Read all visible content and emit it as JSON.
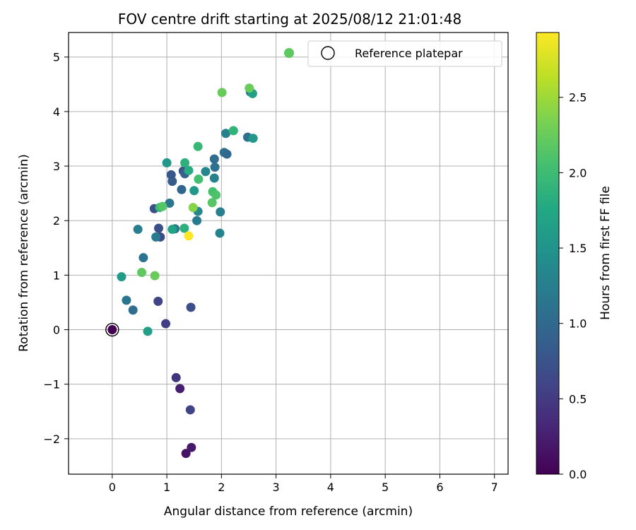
{
  "chart_data": {
    "type": "scatter",
    "title": "FOV centre drift starting at 2025/08/12 21:01:48",
    "xlabel": "Angular distance from reference (arcmin)",
    "ylabel": "Rotation from reference (arcmin)",
    "xlim": [
      -0.8,
      7.25
    ],
    "ylim": [
      -2.65,
      5.45
    ],
    "xticks": [
      0,
      1,
      2,
      3,
      4,
      5,
      6,
      7
    ],
    "yticks": [
      -2,
      -1,
      0,
      1,
      2,
      3,
      4,
      5
    ],
    "xtick_labels": [
      "0",
      "1",
      "2",
      "3",
      "4",
      "5",
      "6",
      "7"
    ],
    "ytick_labels": [
      "−2",
      "−1",
      "0",
      "1",
      "2",
      "3",
      "4",
      "5"
    ],
    "grid": true,
    "colormap": "viridis",
    "colorbar": {
      "label": "Hours from first FF file",
      "range": [
        0,
        2.93
      ],
      "ticks": [
        0.0,
        0.5,
        1.0,
        1.5,
        2.0,
        2.5
      ],
      "tick_labels": [
        "0.0",
        "0.5",
        "1.0",
        "1.5",
        "2.0",
        "2.5"
      ]
    },
    "legend": {
      "placement": "top-right",
      "entries": [
        {
          "label": "",
          "marker": "filled-circle",
          "color": "#5ec962"
        },
        {
          "label": "Reference platepar",
          "marker": "open-circle",
          "color": "#000000"
        }
      ]
    },
    "reference_point": {
      "x": 0,
      "y": 0
    },
    "points": [
      {
        "x": 0.0,
        "y": 0.0,
        "c": 0.0
      },
      {
        "x": 1.35,
        "y": -2.27,
        "c": 0.15
      },
      {
        "x": 1.45,
        "y": -2.16,
        "c": 0.2
      },
      {
        "x": 1.24,
        "y": -1.08,
        "c": 0.25
      },
      {
        "x": 1.17,
        "y": -0.88,
        "c": 0.45
      },
      {
        "x": 1.43,
        "y": -1.47,
        "c": 0.6
      },
      {
        "x": 0.98,
        "y": 0.11,
        "c": 0.55
      },
      {
        "x": 0.84,
        "y": 0.52,
        "c": 0.6
      },
      {
        "x": 1.44,
        "y": 0.41,
        "c": 0.7
      },
      {
        "x": 0.88,
        "y": 1.7,
        "c": 0.65
      },
      {
        "x": 0.85,
        "y": 1.86,
        "c": 0.7
      },
      {
        "x": 0.77,
        "y": 2.22,
        "c": 0.7
      },
      {
        "x": 1.3,
        "y": 2.91,
        "c": 0.75
      },
      {
        "x": 1.08,
        "y": 2.84,
        "c": 0.8
      },
      {
        "x": 1.1,
        "y": 2.72,
        "c": 0.85
      },
      {
        "x": 1.33,
        "y": 2.86,
        "c": 0.9
      },
      {
        "x": 1.27,
        "y": 2.57,
        "c": 0.95
      },
      {
        "x": 0.38,
        "y": 0.36,
        "c": 1.05
      },
      {
        "x": 0.26,
        "y": 0.54,
        "c": 1.15
      },
      {
        "x": 0.57,
        "y": 1.32,
        "c": 1.1
      },
      {
        "x": 0.8,
        "y": 1.7,
        "c": 1.2
      },
      {
        "x": 0.47,
        "y": 1.84,
        "c": 1.25
      },
      {
        "x": 1.05,
        "y": 2.32,
        "c": 1.15
      },
      {
        "x": 1.15,
        "y": 1.85,
        "c": 1.1
      },
      {
        "x": 1.55,
        "y": 2.0,
        "c": 1.2
      },
      {
        "x": 1.88,
        "y": 2.98,
        "c": 1.1
      },
      {
        "x": 1.87,
        "y": 3.13,
        "c": 1.05
      },
      {
        "x": 2.05,
        "y": 3.25,
        "c": 1.1
      },
      {
        "x": 2.1,
        "y": 3.22,
        "c": 1.0
      },
      {
        "x": 2.48,
        "y": 3.53,
        "c": 1.1
      },
      {
        "x": 2.53,
        "y": 4.36,
        "c": 1.2
      },
      {
        "x": 2.08,
        "y": 3.6,
        "c": 1.25
      },
      {
        "x": 1.71,
        "y": 2.9,
        "c": 1.35
      },
      {
        "x": 1.87,
        "y": 2.78,
        "c": 1.3
      },
      {
        "x": 1.98,
        "y": 2.16,
        "c": 1.25
      },
      {
        "x": 1.97,
        "y": 1.77,
        "c": 1.3
      },
      {
        "x": 1.57,
        "y": 2.17,
        "c": 1.35
      },
      {
        "x": 1.5,
        "y": 2.55,
        "c": 1.55
      },
      {
        "x": 1.0,
        "y": 3.06,
        "c": 1.55
      },
      {
        "x": 0.17,
        "y": 0.97,
        "c": 1.6
      },
      {
        "x": 0.65,
        "y": -0.03,
        "c": 1.65
      },
      {
        "x": 1.1,
        "y": 1.84,
        "c": 1.7
      },
      {
        "x": 2.57,
        "y": 4.33,
        "c": 1.65
      },
      {
        "x": 2.58,
        "y": 3.51,
        "c": 1.55
      },
      {
        "x": 1.4,
        "y": 2.92,
        "c": 1.8
      },
      {
        "x": 1.33,
        "y": 3.06,
        "c": 1.85
      },
      {
        "x": 2.22,
        "y": 3.65,
        "c": 1.9
      },
      {
        "x": 1.57,
        "y": 3.36,
        "c": 1.95
      },
      {
        "x": 1.32,
        "y": 1.86,
        "c": 1.85
      },
      {
        "x": 0.87,
        "y": 2.24,
        "c": 1.95
      },
      {
        "x": 1.58,
        "y": 2.76,
        "c": 2.05
      },
      {
        "x": 1.84,
        "y": 2.53,
        "c": 2.05
      },
      {
        "x": 1.9,
        "y": 2.47,
        "c": 2.1
      },
      {
        "x": 1.83,
        "y": 2.33,
        "c": 2.15
      },
      {
        "x": 0.92,
        "y": 2.26,
        "c": 2.15
      },
      {
        "x": 0.54,
        "y": 1.05,
        "c": 2.2
      },
      {
        "x": 0.78,
        "y": 0.99,
        "c": 2.25
      },
      {
        "x": 2.01,
        "y": 4.35,
        "c": 2.25
      },
      {
        "x": 2.51,
        "y": 4.43,
        "c": 2.25
      },
      {
        "x": 1.48,
        "y": 2.24,
        "c": 2.4
      },
      {
        "x": 1.4,
        "y": 1.72,
        "c": 2.93
      }
    ]
  }
}
